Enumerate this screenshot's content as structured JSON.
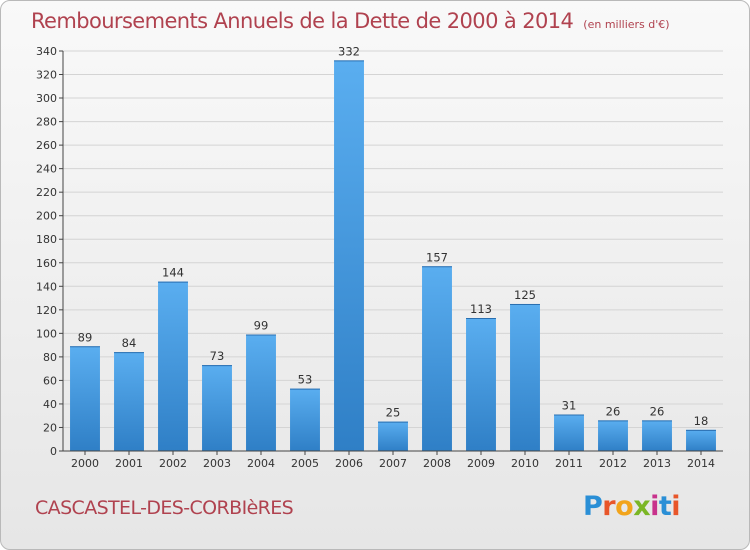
{
  "title": "Remboursements Annuels de la Dette de 2000 à 2014",
  "unit_note": "(en milliers d'€)",
  "commune": "CASCASTEL-DES-CORBIèRES",
  "logo": {
    "text": "Proxiti"
  },
  "colors": {
    "title": "#b0424f",
    "bar_light": "#5aaef0",
    "bar_dark": "#2f7fc6"
  },
  "chart_data": {
    "type": "bar",
    "categories": [
      "2000",
      "2001",
      "2002",
      "2003",
      "2004",
      "2005",
      "2006",
      "2007",
      "2008",
      "2009",
      "2010",
      "2011",
      "2012",
      "2013",
      "2014"
    ],
    "values": [
      89,
      84,
      144,
      73,
      99,
      53,
      332,
      25,
      157,
      113,
      125,
      31,
      26,
      26,
      18
    ],
    "ylim": [
      0,
      340
    ],
    "yticks": [
      0,
      20,
      40,
      60,
      80,
      100,
      120,
      140,
      160,
      180,
      200,
      220,
      240,
      260,
      280,
      300,
      320,
      340
    ],
    "grid": true,
    "data_labels": true
  }
}
